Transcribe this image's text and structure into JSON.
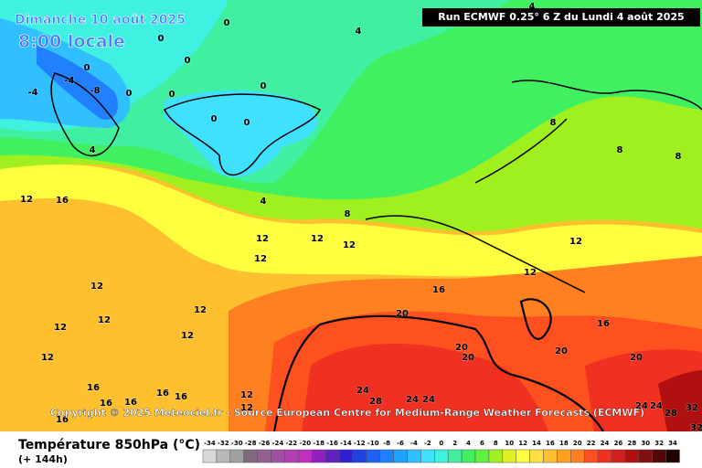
{
  "header": {
    "date": "Dimanche 10 août 2025",
    "time": "8:00 locale",
    "run": "Run ECMWF 0.25° 6 Z du Lundi 4 août 2025"
  },
  "copyright": "Copyright © 2025 Meteociel.fr - Source European Centre for Medium-Range Weather Forecasts (ECMWF)",
  "map": {
    "contour_labels": [
      4,
      4,
      0,
      0,
      0,
      0,
      0,
      -4,
      -4,
      -8,
      0,
      0,
      0,
      0,
      4,
      4,
      8,
      8,
      8,
      8,
      12,
      16,
      12,
      12,
      12,
      12,
      12,
      12,
      12,
      12,
      12,
      12,
      12,
      12,
      16,
      16,
      20,
      20,
      20,
      20,
      20,
      24,
      28,
      24,
      24,
      24,
      24,
      28,
      32,
      32,
      16,
      16,
      16,
      16,
      16,
      16,
      12,
      12
    ]
  },
  "legend": {
    "title": "Température 850hPa (°C)",
    "subtitle": "(+ 144h)",
    "ticks": [
      -34,
      -32,
      -30,
      -28,
      -26,
      -24,
      -22,
      -20,
      -18,
      -16,
      -14,
      -12,
      -10,
      -8,
      -6,
      -4,
      -2,
      0,
      2,
      4,
      6,
      8,
      10,
      12,
      14,
      16,
      18,
      20,
      22,
      24,
      26,
      28,
      30,
      32,
      34
    ],
    "colors": [
      "#d8d8d8",
      "#b8b8b8",
      "#a0a0a0",
      "#806a80",
      "#906090",
      "#a050a0",
      "#b040b0",
      "#c030c0",
      "#9020c0",
      "#6020c0",
      "#3020d0",
      "#2040e0",
      "#2060f0",
      "#2080ff",
      "#20a0ff",
      "#30c0ff",
      "#40e0ff",
      "#40f0e0",
      "#40f0a0",
      "#40f060",
      "#60f040",
      "#a0f020",
      "#e0f020",
      "#ffff40",
      "#ffe040",
      "#ffc030",
      "#ffa020",
      "#ff8020",
      "#ff5020",
      "#f03020",
      "#d02020",
      "#b01010",
      "#801010",
      "#500808",
      "#200000"
    ]
  }
}
